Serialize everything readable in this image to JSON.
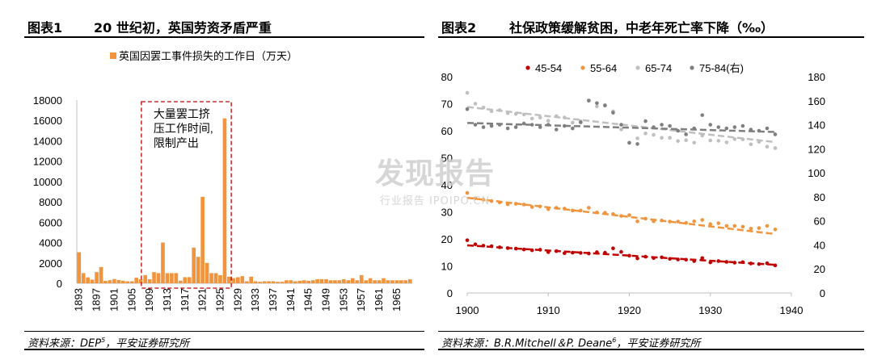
{
  "watermark": {
    "main": "发现报告",
    "sub": "行业报告 IPOIPO.CN"
  },
  "chart1": {
    "label": "图表1",
    "title": "20 世纪初，英国劳资矛盾严重",
    "source_prefix": "资料来源：DEP",
    "source_sup": "5",
    "source_suffix": "，平安证券研究所",
    "annotation": [
      "大量罢工挤",
      "压工作时间,",
      "限制产出"
    ],
    "bar_color": "#F0953E"
  },
  "chart2": {
    "label": "图表2",
    "title": "社保政策缓解贫困，中老年死亡率下降（‰）",
    "source_prefix": "资料来源：B.R.Mitchell＆P. Deane",
    "source_sup": "6",
    "source_suffix": "，平安证券研究所"
  },
  "chart_data": [
    {
      "type": "bar",
      "legend": "英国因罢工事件损失的工作日（万天）",
      "ylim": [
        0,
        18000
      ],
      "yticks": [
        0,
        2000,
        4000,
        6000,
        8000,
        10000,
        12000,
        14000,
        16000,
        18000
      ],
      "xtick_labels": [
        "1893",
        "1897",
        "1901",
        "1905",
        "1909",
        "1913",
        "1917",
        "1921",
        "1925",
        "1929",
        "1933",
        "1937",
        "1941",
        "1945",
        "1949",
        "1953",
        "1957",
        "1961",
        "1965"
      ],
      "categories": [
        1893,
        1894,
        1895,
        1896,
        1897,
        1898,
        1899,
        1900,
        1901,
        1902,
        1903,
        1904,
        1905,
        1906,
        1907,
        1908,
        1909,
        1910,
        1911,
        1912,
        1913,
        1914,
        1915,
        1916,
        1917,
        1918,
        1919,
        1920,
        1921,
        1922,
        1923,
        1924,
        1925,
        1926,
        1927,
        1928,
        1929,
        1930,
        1931,
        1932,
        1933,
        1934,
        1935,
        1936,
        1937,
        1938,
        1939,
        1940,
        1941,
        1942,
        1943,
        1944,
        1945,
        1946,
        1947,
        1948,
        1949,
        1950,
        1951,
        1952,
        1953,
        1954,
        1955,
        1956,
        1957,
        1958,
        1959,
        1960,
        1961,
        1962,
        1963,
        1964,
        1965,
        1966,
        1967,
        1968
      ],
      "values": [
        3050,
        1000,
        580,
        360,
        1100,
        1600,
        240,
        300,
        420,
        330,
        250,
        200,
        200,
        550,
        400,
        800,
        400,
        1100,
        1000,
        4000,
        1000,
        1000,
        1000,
        250,
        600,
        600,
        3500,
        2600,
        8500,
        2000,
        1000,
        1000,
        800,
        16200,
        650,
        500,
        600,
        700,
        200,
        650,
        200,
        150,
        200,
        200,
        200,
        150,
        150,
        300,
        300,
        200,
        250,
        300,
        250,
        300,
        400,
        400,
        400,
        300,
        300,
        300,
        400,
        300,
        500,
        300,
        800,
        300,
        500,
        300,
        300,
        500,
        300,
        300,
        300,
        300,
        300,
        400
      ]
    },
    {
      "type": "scatter",
      "xlim": [
        1900,
        1940
      ],
      "xticks": [
        1900,
        1910,
        1920,
        1930,
        1940
      ],
      "ylim_left": [
        0,
        80
      ],
      "yticks_left": [
        0,
        10,
        20,
        30,
        40,
        50,
        60,
        70,
        80
      ],
      "ylim_right": [
        0,
        180
      ],
      "yticks_right": [
        0,
        20,
        40,
        60,
        80,
        100,
        120,
        140,
        160,
        180
      ],
      "x": [
        1900,
        1901,
        1902,
        1903,
        1904,
        1905,
        1906,
        1907,
        1908,
        1909,
        1910,
        1911,
        1912,
        1913,
        1914,
        1915,
        1916,
        1917,
        1918,
        1919,
        1920,
        1921,
        1922,
        1923,
        1924,
        1925,
        1926,
        1927,
        1928,
        1929,
        1930,
        1931,
        1932,
        1933,
        1934,
        1935,
        1936,
        1937,
        1938
      ],
      "series": [
        {
          "name": "45-54",
          "color": "#C00000",
          "axis": "left",
          "values": [
            19.5,
            18,
            17.5,
            17.3,
            16.9,
            16.6,
            16.4,
            16.1,
            15.8,
            16,
            15.1,
            15.5,
            14.7,
            14.9,
            14.8,
            14.6,
            15.1,
            14.9,
            16.5,
            15.2,
            13.8,
            12.8,
            13.4,
            12.9,
            13.2,
            12.6,
            12.4,
            12.3,
            11.8,
            12.9,
            11.3,
            11.8,
            11.5,
            11.2,
            11.4,
            10.9,
            10.7,
            11,
            10.2
          ],
          "trend": [
            17.6,
            10.4
          ]
        },
        {
          "name": "55-64",
          "color": "#F0953E",
          "axis": "left",
          "values": [
            37,
            35,
            34.5,
            34,
            33.5,
            32.8,
            33,
            32.7,
            31.8,
            32,
            31,
            31.5,
            31.2,
            30.5,
            30.5,
            31.5,
            29.8,
            29.7,
            29.2,
            28.5,
            28.8,
            26.5,
            27.5,
            26.5,
            26.8,
            26.4,
            26.4,
            25.9,
            26.5,
            27,
            25.5,
            25.8,
            24.8,
            24.8,
            24.5,
            23.8,
            24,
            24.8,
            23.5
          ],
          "trend": [
            35.2,
            21.8
          ]
        },
        {
          "name": "65-74",
          "color": "#BFBFBF",
          "axis": "left",
          "values": [
            74,
            70,
            68.6,
            67.2,
            67.6,
            66.5,
            66.2,
            66,
            64.5,
            64.9,
            63.7,
            65.4,
            64.9,
            63,
            63.5,
            71.3,
            69,
            69.5,
            67.2,
            60.5,
            55.5,
            57.2,
            59,
            58.5,
            57.4,
            57.4,
            56.2,
            56.5,
            55.6,
            58.2,
            56.4,
            56.3,
            55.7,
            56.9,
            56.8,
            55,
            55.9,
            54.1,
            53.6
          ],
          "trend": [
            68.8,
            55.8
          ]
        },
        {
          "name": "75-84(右)",
          "color": "#7F7F7F",
          "axis": "right",
          "values": [
            153,
            140,
            138,
            139,
            140,
            137,
            138,
            141,
            140,
            138,
            140,
            136,
            139,
            137,
            142,
            160,
            158,
            156,
            150,
            140,
            125,
            124,
            143,
            138,
            140,
            139,
            135,
            132,
            137,
            148,
            140,
            138,
            137,
            138,
            139,
            136,
            135,
            137,
            132
          ],
          "trend": [
            141.5,
            134
          ]
        }
      ]
    }
  ]
}
